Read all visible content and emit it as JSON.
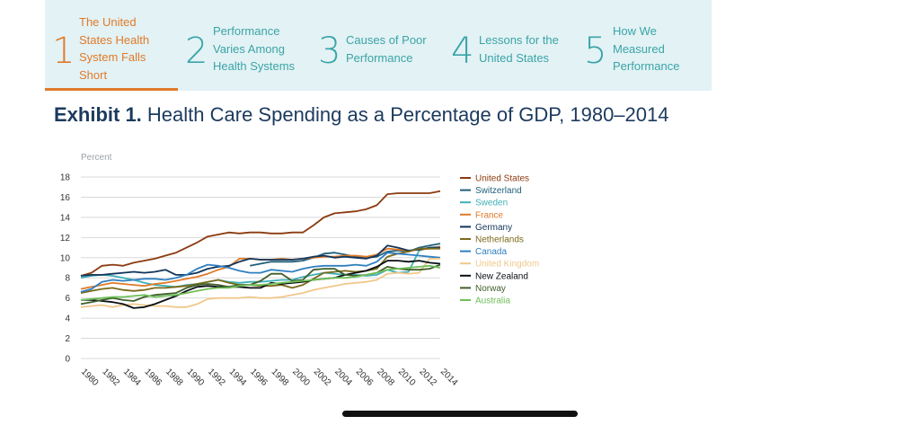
{
  "tabs": [
    {
      "number": "1",
      "label_lines": [
        "The United",
        "States Health",
        "System Falls",
        "Short"
      ],
      "active": true
    },
    {
      "number": "2",
      "label_lines": [
        "Performance",
        "Varies Among",
        "Health Systems"
      ],
      "active": false
    },
    {
      "number": "3",
      "label_lines": [
        "Causes of Poor",
        "Performance"
      ],
      "active": false
    },
    {
      "number": "4",
      "label_lines": [
        "Lessons for the",
        "United States"
      ],
      "active": false
    },
    {
      "number": "5",
      "label_lines": [
        "How We",
        "Measured",
        "Performance"
      ],
      "active": false
    }
  ],
  "exhibit": {
    "label": "Exhibit 1.",
    "title": "Health Care Spending as a Percentage of GDP, 1980–2014"
  },
  "chart_data": {
    "type": "line",
    "ylabel": "Percent",
    "ylim": [
      0,
      18
    ],
    "yticks": [
      0,
      2,
      4,
      6,
      8,
      10,
      12,
      14,
      16,
      18
    ],
    "xticks": [
      "1980",
      "1982",
      "1984",
      "1986",
      "1988",
      "1990",
      "1992",
      "1994",
      "1996",
      "1998",
      "2000",
      "2002",
      "2004",
      "2006",
      "2008",
      "2010",
      "2012",
      "2014"
    ],
    "grid": true,
    "legend_position": "right",
    "x": [
      1980,
      1981,
      1982,
      1983,
      1984,
      1985,
      1986,
      1987,
      1988,
      1989,
      1990,
      1991,
      1992,
      1993,
      1994,
      1995,
      1996,
      1997,
      1998,
      1999,
      2000,
      2001,
      2002,
      2003,
      2004,
      2005,
      2006,
      2007,
      2008,
      2009,
      2010,
      2011,
      2012,
      2013,
      2014
    ],
    "series": [
      {
        "name": "United States",
        "color": "#8b3a0f",
        "values": [
          8.2,
          8.5,
          9.2,
          9.3,
          9.2,
          9.5,
          9.7,
          9.9,
          10.2,
          10.5,
          11.0,
          11.5,
          12.1,
          12.3,
          12.5,
          12.4,
          12.5,
          12.5,
          12.4,
          12.4,
          12.5,
          12.5,
          13.2,
          14.0,
          14.4,
          14.5,
          14.6,
          14.8,
          15.2,
          16.3,
          16.4,
          16.4,
          16.4,
          16.4,
          16.6
        ]
      },
      {
        "name": "Switzerland",
        "color": "#1f5f7a",
        "values": [
          null,
          null,
          null,
          null,
          null,
          null,
          null,
          null,
          null,
          null,
          null,
          null,
          null,
          null,
          null,
          null,
          9.2,
          9.4,
          9.6,
          9.6,
          9.6,
          9.7,
          10.0,
          10.4,
          10.5,
          10.3,
          10.1,
          10.0,
          10.1,
          10.6,
          10.7,
          10.6,
          11.0,
          11.2,
          11.4
        ]
      },
      {
        "name": "Sweden",
        "color": "#3fb0b8",
        "values": [
          8.0,
          8.2,
          8.3,
          8.2,
          8.0,
          7.8,
          7.5,
          7.3,
          7.2,
          7.1,
          7.3,
          7.4,
          7.6,
          7.8,
          7.6,
          7.5,
          7.6,
          7.6,
          7.7,
          7.8,
          7.8,
          8.1,
          8.3,
          8.5,
          8.4,
          8.3,
          8.3,
          8.2,
          8.3,
          8.8,
          8.5,
          8.6,
          10.7,
          11.0,
          11.1
        ]
      },
      {
        "name": "France",
        "color": "#e07a2a",
        "values": [
          6.9,
          7.1,
          7.3,
          7.5,
          7.4,
          7.3,
          7.2,
          7.4,
          7.5,
          7.7,
          7.9,
          8.1,
          8.4,
          8.8,
          9.1,
          9.9,
          9.9,
          9.8,
          9.8,
          9.9,
          9.8,
          9.9,
          10.0,
          10.1,
          10.1,
          10.2,
          10.2,
          10.1,
          10.3,
          10.9,
          10.8,
          10.7,
          10.8,
          10.9,
          11.1
        ]
      },
      {
        "name": "Germany",
        "color": "#12355a",
        "values": [
          8.2,
          8.3,
          8.3,
          8.4,
          8.5,
          8.6,
          8.5,
          8.6,
          8.8,
          8.3,
          8.3,
          8.5,
          8.9,
          9.1,
          9.2,
          9.6,
          9.9,
          9.8,
          9.8,
          9.8,
          9.8,
          9.9,
          10.1,
          10.2,
          10.0,
          10.1,
          10.0,
          9.9,
          10.2,
          11.2,
          11.0,
          10.7,
          10.8,
          11.0,
          11.0
        ]
      },
      {
        "name": "Netherlands",
        "color": "#7a6a1a",
        "values": [
          6.5,
          6.7,
          6.9,
          7.0,
          6.8,
          6.7,
          6.8,
          7.0,
          7.0,
          7.1,
          7.2,
          7.4,
          7.6,
          7.8,
          7.5,
          7.3,
          7.3,
          7.2,
          7.2,
          7.3,
          7.0,
          7.3,
          7.9,
          8.5,
          8.6,
          8.7,
          8.6,
          8.7,
          8.9,
          10.1,
          10.4,
          10.6,
          10.9,
          10.9,
          10.9
        ]
      },
      {
        "name": "Canada",
        "color": "#2f7fc0",
        "values": [
          6.6,
          6.9,
          7.6,
          7.8,
          7.7,
          7.8,
          7.9,
          7.9,
          7.8,
          8.0,
          8.3,
          8.9,
          9.3,
          9.2,
          9.0,
          8.7,
          8.5,
          8.5,
          8.8,
          8.7,
          8.6,
          8.9,
          9.1,
          9.2,
          9.2,
          9.2,
          9.3,
          9.2,
          9.6,
          10.5,
          10.4,
          10.3,
          10.2,
          10.1,
          10.0
        ]
      },
      {
        "name": "United Kingdom",
        "color": "#f0c88a",
        "values": [
          5.1,
          5.2,
          5.3,
          5.1,
          5.3,
          5.4,
          5.3,
          5.2,
          5.2,
          5.1,
          5.1,
          5.4,
          5.9,
          6.0,
          6.0,
          6.0,
          6.1,
          6.0,
          6.0,
          6.1,
          6.3,
          6.5,
          6.8,
          7.0,
          7.2,
          7.4,
          7.5,
          7.6,
          7.8,
          8.4,
          8.5,
          8.4,
          8.5,
          9.9,
          9.9
        ]
      },
      {
        "name": "New Zealand",
        "color": "#0a0f14",
        "values": [
          5.8,
          5.8,
          5.7,
          5.6,
          5.4,
          5.0,
          5.1,
          5.4,
          5.8,
          6.2,
          6.7,
          7.1,
          7.2,
          7.1,
          7.1,
          7.1,
          7.0,
          7.0,
          7.5,
          7.4,
          7.5,
          7.6,
          7.8,
          7.9,
          8.0,
          8.3,
          8.5,
          8.7,
          9.1,
          9.7,
          9.7,
          9.6,
          9.7,
          9.5,
          9.4
        ]
      },
      {
        "name": "Norway",
        "color": "#3f5f2a",
        "values": [
          5.4,
          5.6,
          5.8,
          6.0,
          5.8,
          5.7,
          6.1,
          6.3,
          6.4,
          6.5,
          7.0,
          7.3,
          7.4,
          7.3,
          7.1,
          7.3,
          7.3,
          7.7,
          8.4,
          8.4,
          7.7,
          7.8,
          8.8,
          8.9,
          8.9,
          8.3,
          8.2,
          8.3,
          8.5,
          9.1,
          8.9,
          8.8,
          8.8,
          8.9,
          9.3
        ]
      },
      {
        "name": "Australia",
        "color": "#6fbf5a",
        "values": [
          5.8,
          5.9,
          6.0,
          6.1,
          6.1,
          6.2,
          6.3,
          6.1,
          6.2,
          6.3,
          6.5,
          6.7,
          6.9,
          7.0,
          7.0,
          7.2,
          7.3,
          7.3,
          7.4,
          7.5,
          7.6,
          7.7,
          7.8,
          7.9,
          8.0,
          8.0,
          8.1,
          8.3,
          8.5,
          8.8,
          8.9,
          9.0,
          9.1,
          9.2,
          9.0
        ]
      }
    ]
  }
}
